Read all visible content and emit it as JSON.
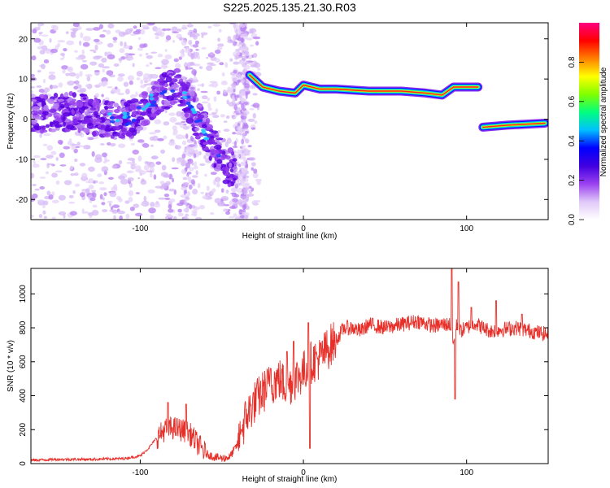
{
  "chart_data": [
    {
      "type": "heatmap",
      "title": "S225.2025.135.21.30.R03",
      "xlabel": "Height of straight line (km)",
      "ylabel": "Frequency (Hz)",
      "xlim": [
        -167,
        150
      ],
      "ylim": [
        -25,
        24
      ],
      "xticks": [
        -100,
        0,
        100
      ],
      "yticks": [
        -20,
        -10,
        0,
        10,
        20
      ],
      "colorbar": {
        "label": "Normalized spectral amplitude",
        "range": [
          0,
          1
        ],
        "ticks": [
          "0.0",
          "0.2",
          "0.4",
          "0.6",
          "0.8"
        ],
        "colors": [
          "#ffffff",
          "#e0c8f8",
          "#9b40f0",
          "#4000e0",
          "#0000ff",
          "#00c0ff",
          "#00ff80",
          "#80ff00",
          "#ffff00",
          "#ff8000",
          "#ff0000",
          "#ff0080"
        ]
      },
      "ridge": [
        {
          "x": -33,
          "y": 11
        },
        {
          "x": -25,
          "y": 8
        },
        {
          "x": -15,
          "y": 7
        },
        {
          "x": -5,
          "y": 6.5
        },
        {
          "x": 0,
          "y": 8.5
        },
        {
          "x": 10,
          "y": 7.5
        },
        {
          "x": 20,
          "y": 7.5
        },
        {
          "x": 40,
          "y": 7
        },
        {
          "x": 60,
          "y": 7
        },
        {
          "x": 75,
          "y": 6.5
        },
        {
          "x": 85,
          "y": 6
        },
        {
          "x": 92,
          "y": 8
        },
        {
          "x": 107,
          "y": 8
        },
        {
          "x": 110,
          "y": -2
        },
        {
          "x": 125,
          "y": -1.5
        },
        {
          "x": 148,
          "y": -1
        }
      ],
      "noise_band": [
        {
          "x": -165,
          "y": 1
        },
        {
          "x": -140,
          "y": 2
        },
        {
          "x": -120,
          "y": 0
        },
        {
          "x": -105,
          "y": 0
        },
        {
          "x": -95,
          "y": 4
        },
        {
          "x": -85,
          "y": 7
        },
        {
          "x": -75,
          "y": 8
        },
        {
          "x": -65,
          "y": 0
        },
        {
          "x": -58,
          "y": -5
        },
        {
          "x": -50,
          "y": -10
        },
        {
          "x": -43,
          "y": -13
        }
      ]
    },
    {
      "type": "line",
      "xlabel": "Height of straight line (km)",
      "ylabel": "SNR (10 * v/v)",
      "xlim": [
        -167,
        150
      ],
      "ylim": [
        0,
        1150
      ],
      "xticks": [
        -100,
        0,
        100
      ],
      "yticks": [
        0,
        200,
        400,
        600,
        800,
        1000
      ],
      "color": "#e8302a",
      "x": [
        -167,
        -150,
        -130,
        -110,
        -100,
        -95,
        -90,
        -85,
        -80,
        -75,
        -70,
        -65,
        -60,
        -55,
        -50,
        -45,
        -40,
        -35,
        -30,
        -25,
        -20,
        -15,
        -10,
        -5,
        0,
        5,
        10,
        15,
        20,
        25,
        30,
        35,
        40,
        50,
        60,
        70,
        80,
        85,
        90,
        92,
        94,
        96,
        100,
        105,
        110,
        115,
        120,
        130,
        140,
        150
      ],
      "y": [
        20,
        25,
        25,
        30,
        45,
        90,
        150,
        200,
        210,
        200,
        180,
        120,
        60,
        40,
        30,
        40,
        120,
        280,
        360,
        420,
        470,
        500,
        450,
        500,
        540,
        600,
        620,
        680,
        730,
        800,
        800,
        780,
        820,
        800,
        820,
        840,
        810,
        820,
        820,
        700,
        820,
        780,
        800,
        830,
        800,
        780,
        790,
        800,
        780,
        760
      ],
      "spikes": [
        {
          "x": -83,
          "y": 360
        },
        {
          "x": -72,
          "y": 350
        },
        {
          "x": -38,
          "y": 200
        },
        {
          "x": -20,
          "y": 560
        },
        {
          "x": -10,
          "y": 660
        },
        {
          "x": -6,
          "y": 720
        },
        {
          "x": 3,
          "y": 830
        },
        {
          "x": 4,
          "y": 90
        },
        {
          "x": 91,
          "y": 1150
        },
        {
          "x": 93,
          "y": 380
        },
        {
          "x": 95,
          "y": 1070
        },
        {
          "x": 103,
          "y": 920
        },
        {
          "x": 118,
          "y": 960
        },
        {
          "x": 134,
          "y": 880
        }
      ]
    }
  ]
}
